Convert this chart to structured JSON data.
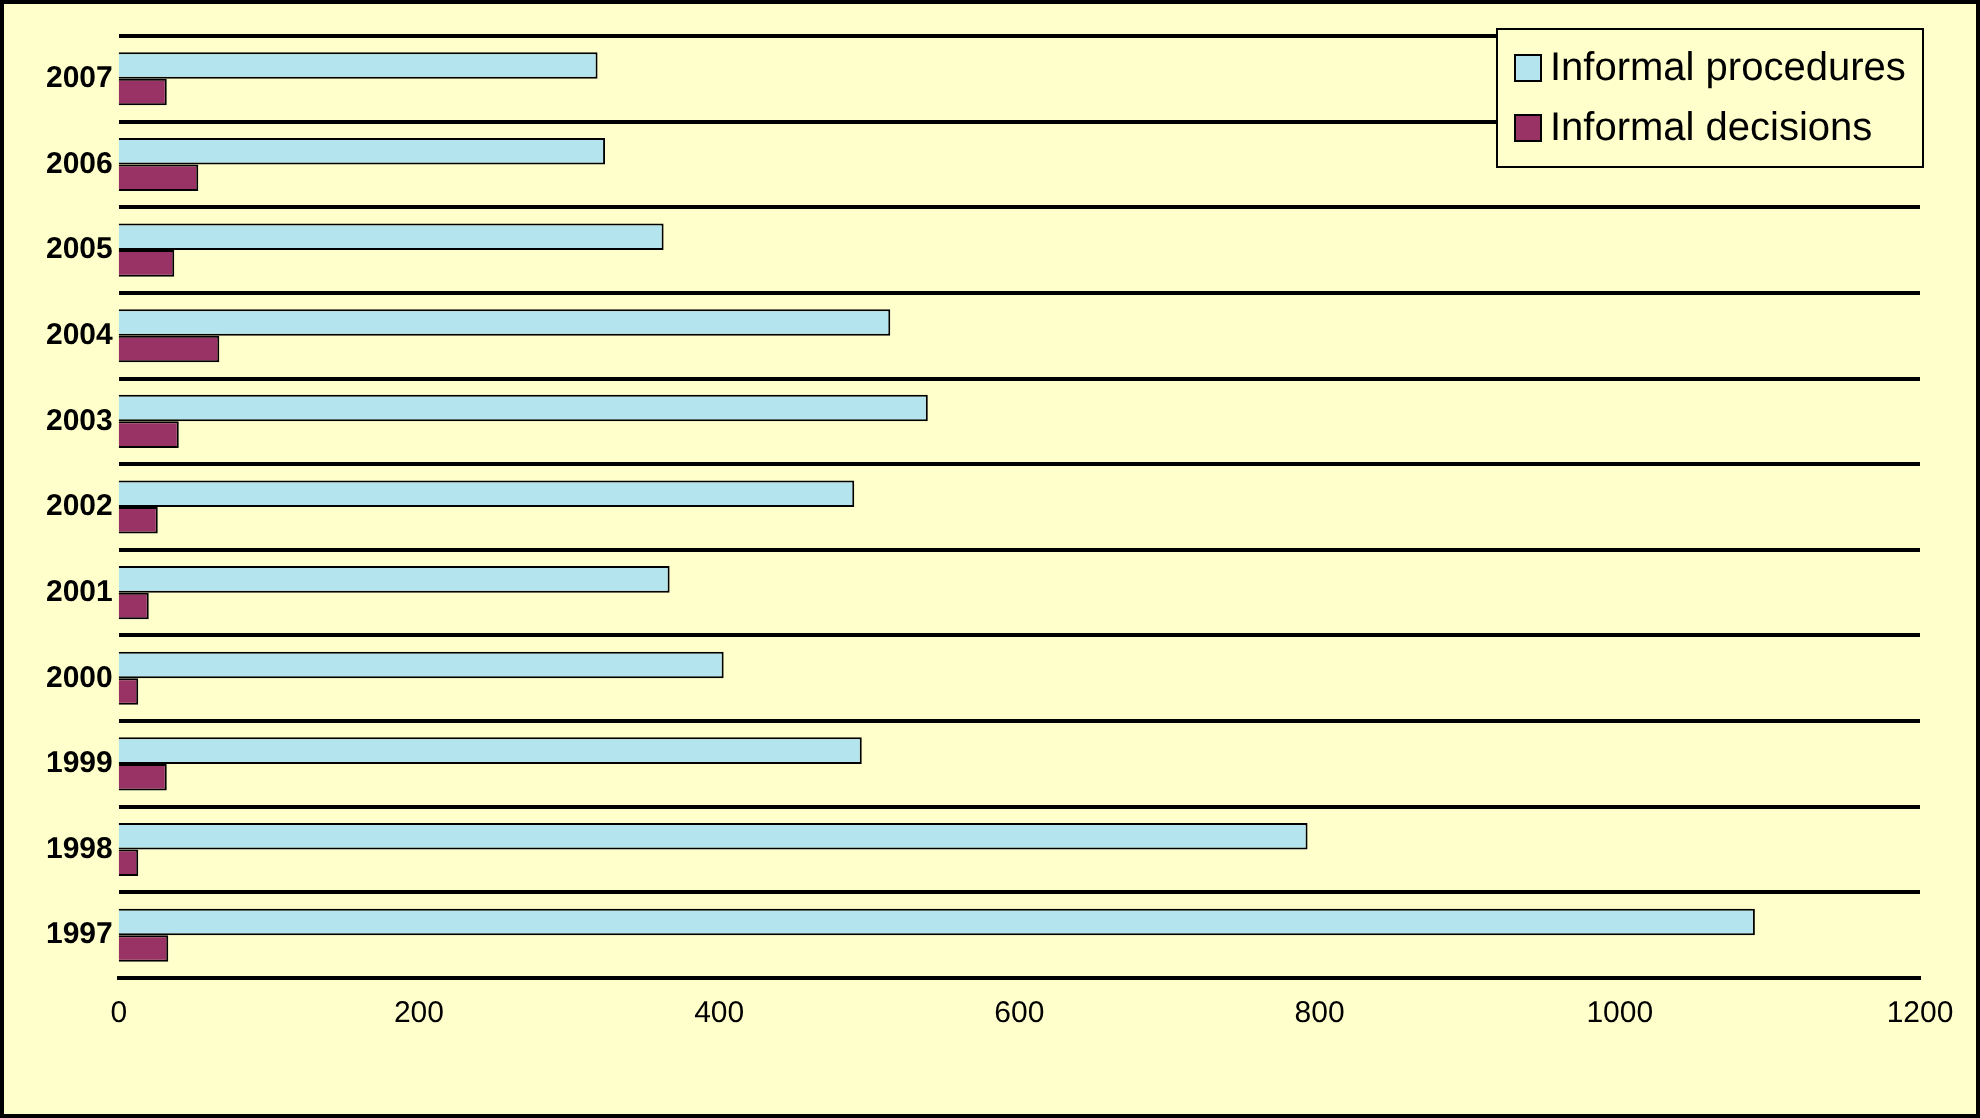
{
  "chart_data": {
    "type": "bar",
    "orientation": "horizontal",
    "categories": [
      "2007",
      "2006",
      "2005",
      "2004",
      "2003",
      "2002",
      "2001",
      "2000",
      "1999",
      "1998",
      "1997"
    ],
    "series": [
      {
        "name": "Informal procedures",
        "color": "#b4e4ee",
        "values": [
          319,
          324,
          363,
          514,
          539,
          490,
          367,
          403,
          495,
          792,
          1090
        ]
      },
      {
        "name": "Informal decisions",
        "color": "#993366",
        "values": [
          32,
          53,
          37,
          67,
          40,
          26,
          20,
          13,
          32,
          13,
          33
        ]
      }
    ],
    "xlim": [
      0,
      1200
    ],
    "xticks": [
      0,
      200,
      400,
      600,
      800,
      1000,
      1200
    ],
    "grid": "y",
    "legend": "top right"
  }
}
